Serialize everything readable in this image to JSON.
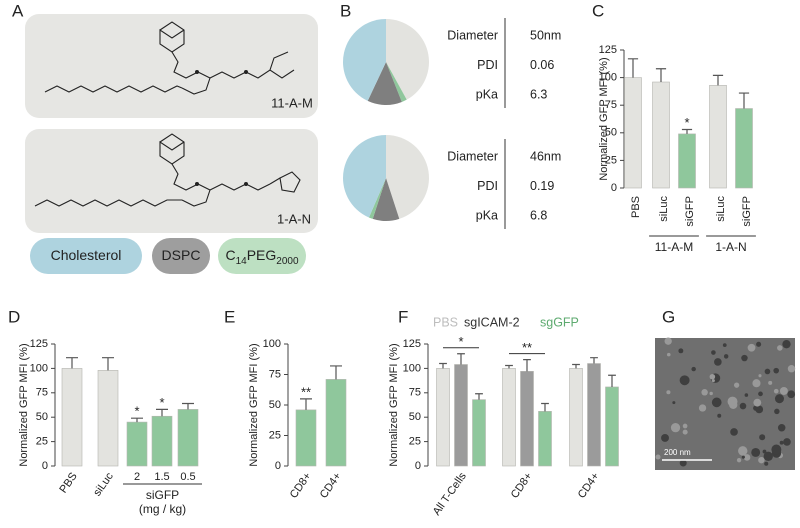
{
  "panel_labels": [
    "A",
    "B",
    "C",
    "D",
    "E",
    "F",
    "G"
  ],
  "panel_a": {
    "compounds": [
      "11-A-M",
      "1-A-N"
    ],
    "components": [
      {
        "parts": [
          "Cholesterol"
        ],
        "color": "#aed3df"
      },
      {
        "parts": [
          "DSPC"
        ],
        "color": "#9e9e9e"
      },
      {
        "parts": [
          "C",
          "14",
          "PEG",
          "2000"
        ],
        "color": "#bde0c2"
      }
    ]
  },
  "panel_g": {
    "scale_bar": "200 nm"
  },
  "chart_data": [
    {
      "type": "pie",
      "values": [
        42,
        2,
        13,
        43
      ],
      "colors": [
        "#e3e3df",
        "#8fc79c",
        "#7f7f7f",
        "#aed3df"
      ],
      "table": [
        [
          "Diameter",
          "50nm"
        ],
        [
          "PDI",
          "0.06"
        ],
        [
          "pKa",
          "6.3"
        ]
      ]
    },
    {
      "type": "pie",
      "values": [
        45,
        10,
        1.5,
        43.5
      ],
      "colors": [
        "#e3e3df",
        "#7f7f7f",
        "#8fc79c",
        "#aed3df"
      ],
      "table": [
        [
          "Diameter",
          "46nm"
        ],
        [
          "PDI",
          "0.19"
        ],
        [
          "pKa",
          "6.8"
        ]
      ]
    },
    {
      "type": "bar",
      "y_label": "Normalized GFP MFI (%)",
      "categories": [
        "PBS",
        "siLuc",
        "siGFP",
        "siLuc",
        "siGFP"
      ],
      "values": [
        100,
        96,
        49,
        93,
        72
      ],
      "errors": [
        17,
        12,
        4,
        9,
        14
      ],
      "colors": [
        "#e3e3df",
        "#e3e3df",
        "#8fc79c",
        "#e3e3df",
        "#8fc79c"
      ],
      "annotations": [
        null,
        null,
        "*",
        null,
        null
      ],
      "category_groups": [
        null,
        "11-A-M",
        "11-A-M",
        "1-A-N",
        "1-A-N"
      ],
      "ylim": [
        0,
        125
      ],
      "yticks": [
        0,
        25,
        50,
        75,
        100,
        125
      ]
    },
    {
      "type": "bar",
      "y_label": "Normalized GFP MFI (%)",
      "categories": [
        "PBS",
        "siLuc",
        "2",
        "1.5",
        "0.5"
      ],
      "values": [
        100,
        98,
        45,
        51,
        58
      ],
      "errors": [
        11,
        13,
        4,
        7,
        6
      ],
      "colors": [
        "#e3e3df",
        "#e3e3df",
        "#8fc79c",
        "#8fc79c",
        "#8fc79c"
      ],
      "annotations": [
        null,
        null,
        "*",
        "*",
        null
      ],
      "category_groups": [
        null,
        null,
        "siGFP",
        "siGFP",
        "siGFP"
      ],
      "group_subtitle": "(mg / kg)",
      "ylim": [
        0,
        125
      ],
      "yticks": [
        0,
        25,
        50,
        75,
        100,
        125
      ]
    },
    {
      "type": "bar",
      "y_label": "Normalized GFP MFI (%)",
      "categories": [
        "CD8+",
        "CD4+"
      ],
      "values": [
        46,
        71
      ],
      "errors": [
        9,
        11
      ],
      "colors": [
        "#8fc79c",
        "#8fc79c"
      ],
      "annotations": [
        "**",
        null
      ],
      "ylim": [
        0,
        100
      ],
      "yticks": [
        0,
        25,
        50,
        75,
        100
      ]
    },
    {
      "type": "bar",
      "y_label": "Normalized GFP MFI (%)",
      "categories": [
        "All T-Cells",
        "CD8+",
        "CD4+"
      ],
      "series": [
        {
          "name": "PBS",
          "color": "#e3e3df",
          "legend_text_color": "#bdbdbd",
          "values": [
            100,
            100,
            100
          ],
          "errors": [
            5,
            3,
            4
          ]
        },
        {
          "name": "sgICAM-2",
          "color": "#9b9b9b",
          "legend_text_color": "#333333",
          "values": [
            104,
            97,
            105
          ],
          "errors": [
            11,
            12,
            6
          ]
        },
        {
          "name": "sgGFP",
          "color": "#8fc79c",
          "legend_text_color": "#5daa6f",
          "values": [
            68,
            56,
            81
          ],
          "errors": [
            6,
            8,
            12
          ]
        }
      ],
      "comparisons": [
        "*",
        "**",
        null
      ],
      "ylim": [
        0,
        125
      ],
      "yticks": [
        0,
        25,
        50,
        75,
        100,
        125
      ]
    }
  ]
}
